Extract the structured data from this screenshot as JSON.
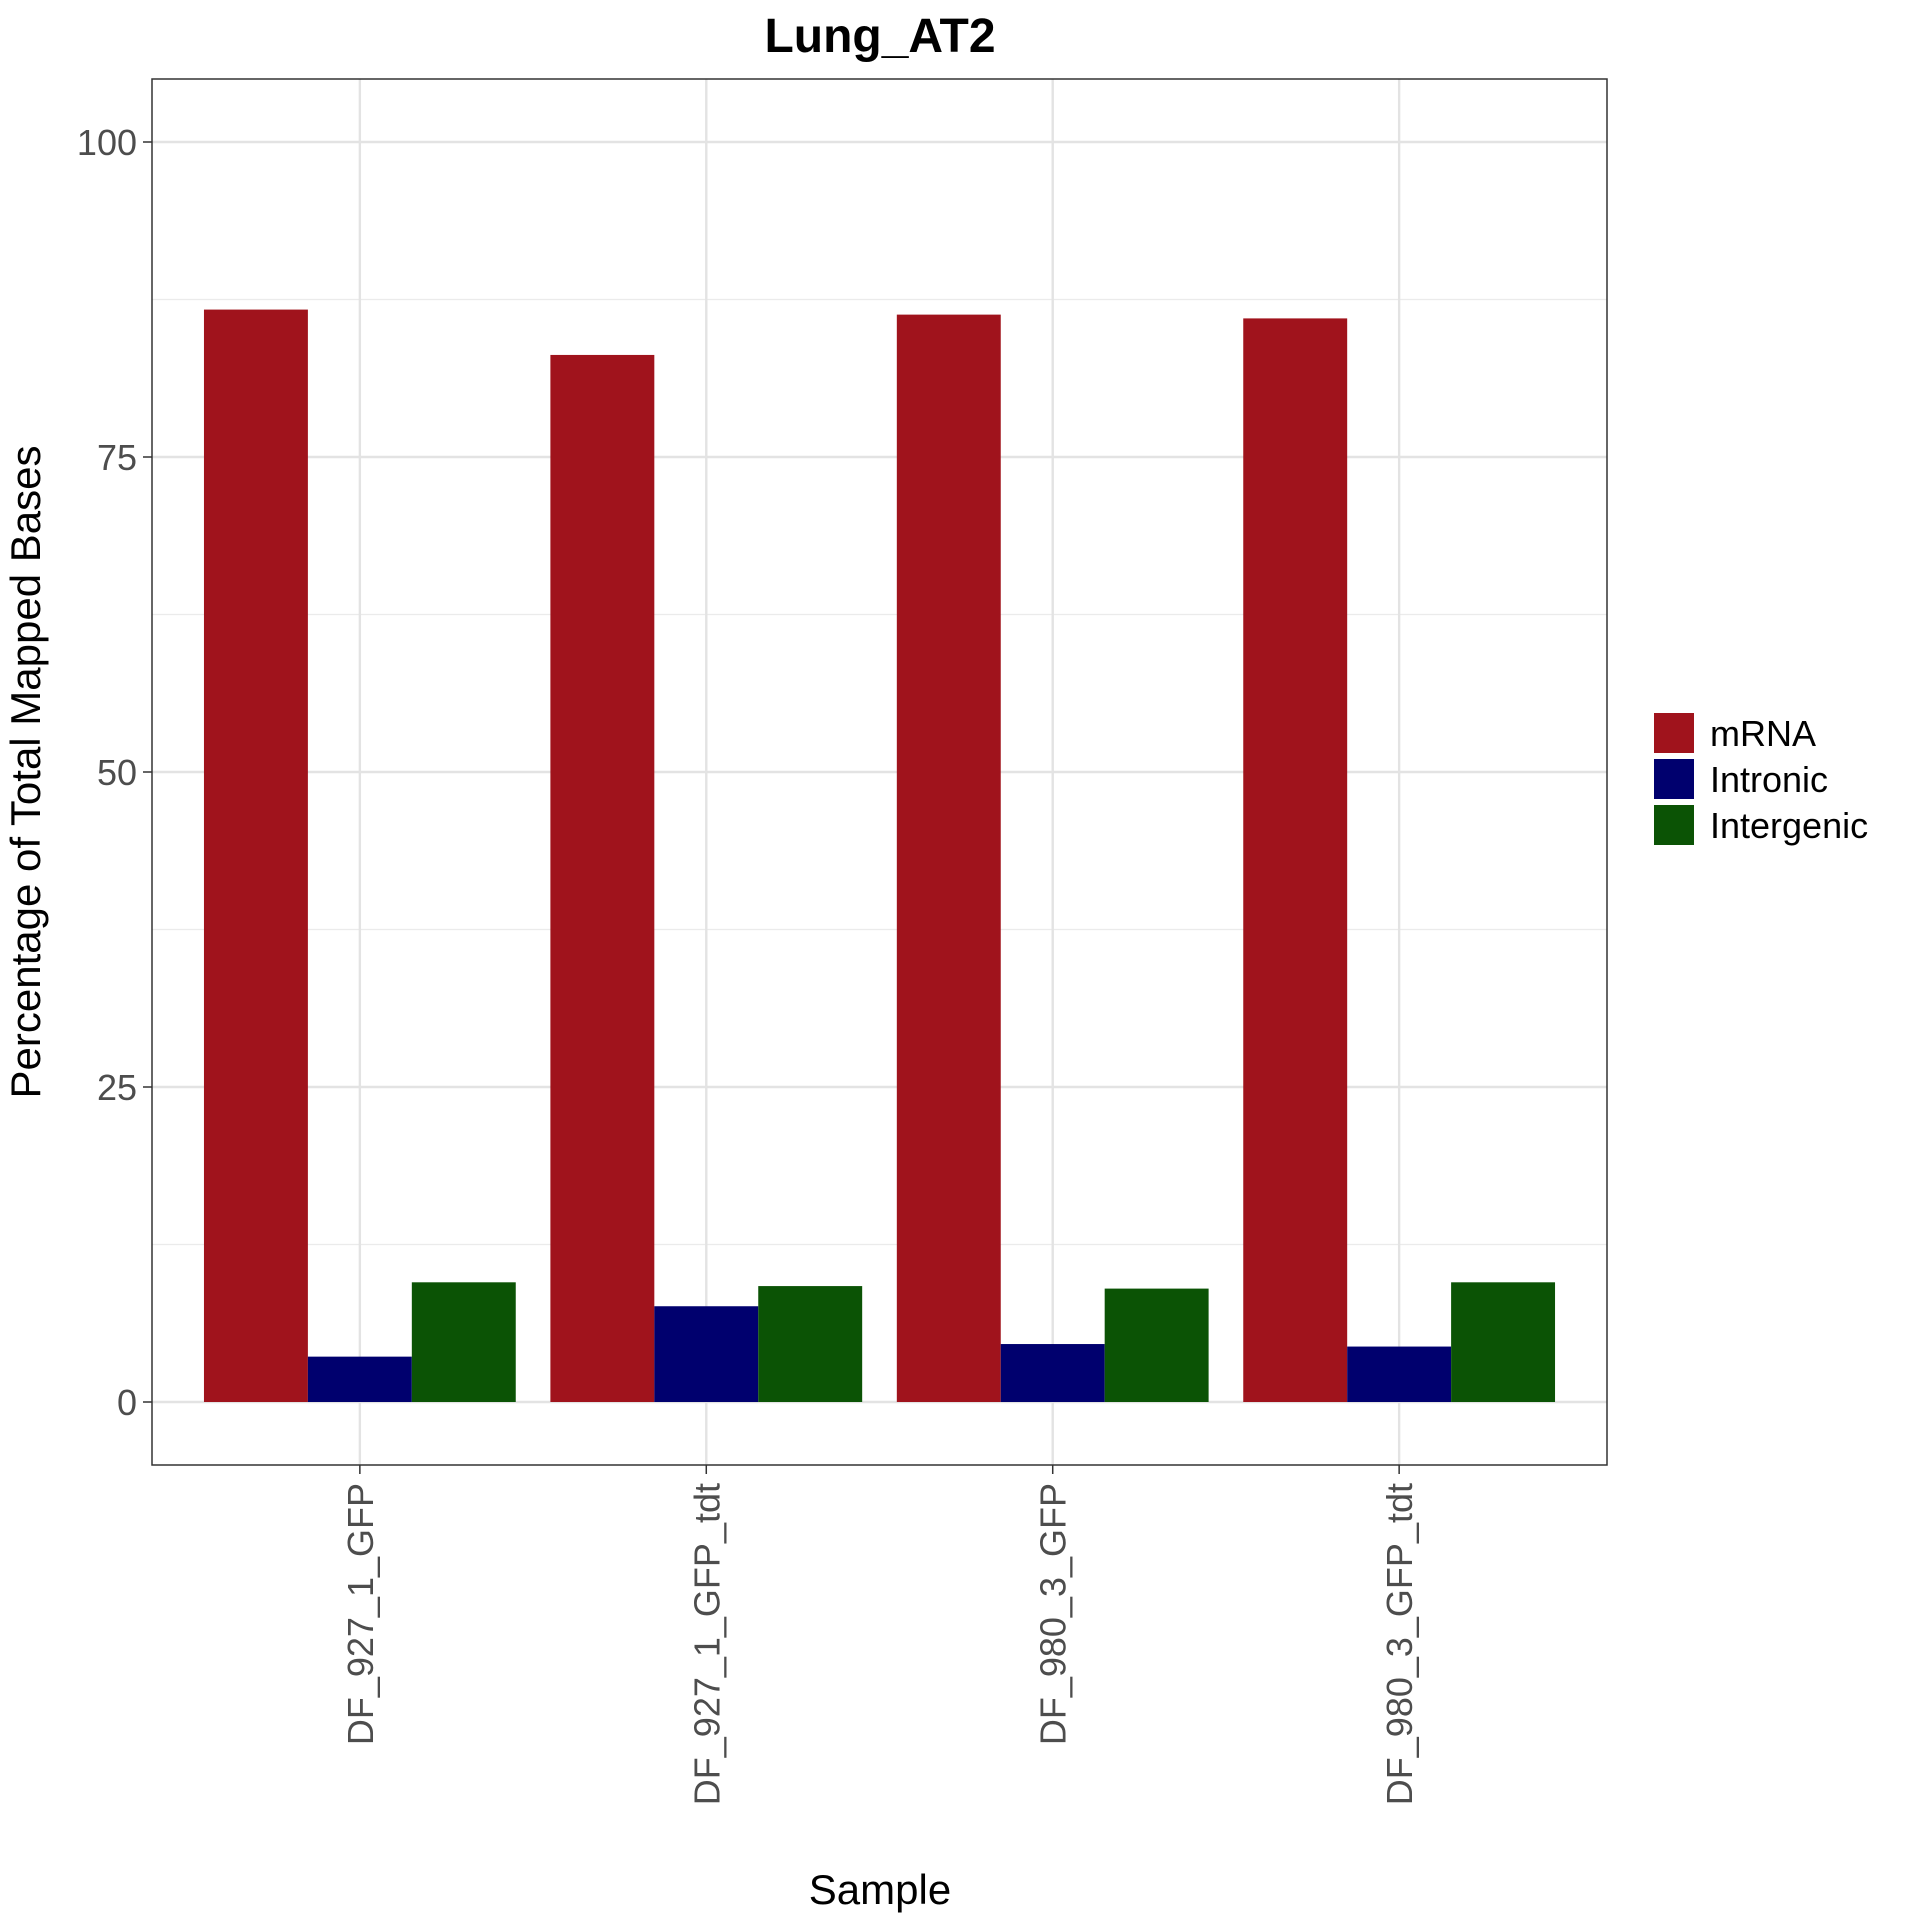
{
  "chart_data": {
    "type": "bar",
    "title": "Lung_AT2",
    "xlabel": "Sample",
    "ylabel": "Percentage of Total Mapped Bases",
    "categories": [
      "DF_927_1_GFP",
      "DF_927_1_GFP_tdt",
      "DF_980_3_GFP",
      "DF_980_3_GFP_tdt"
    ],
    "series": [
      {
        "name": "mRNA",
        "color": "#a0131c",
        "values": [
          86.7,
          83.1,
          86.3,
          86.0
        ]
      },
      {
        "name": "Intronic",
        "color": "#00006e",
        "values": [
          3.6,
          7.6,
          4.6,
          4.4
        ]
      },
      {
        "name": "Intergenic",
        "color": "#0b5305",
        "values": [
          9.5,
          9.2,
          9.0,
          9.5
        ]
      }
    ],
    "ylim": [
      -5,
      105
    ],
    "yticks": [
      "0",
      "25",
      "50",
      "75",
      "100"
    ],
    "grid": true,
    "legend_position": "right"
  }
}
